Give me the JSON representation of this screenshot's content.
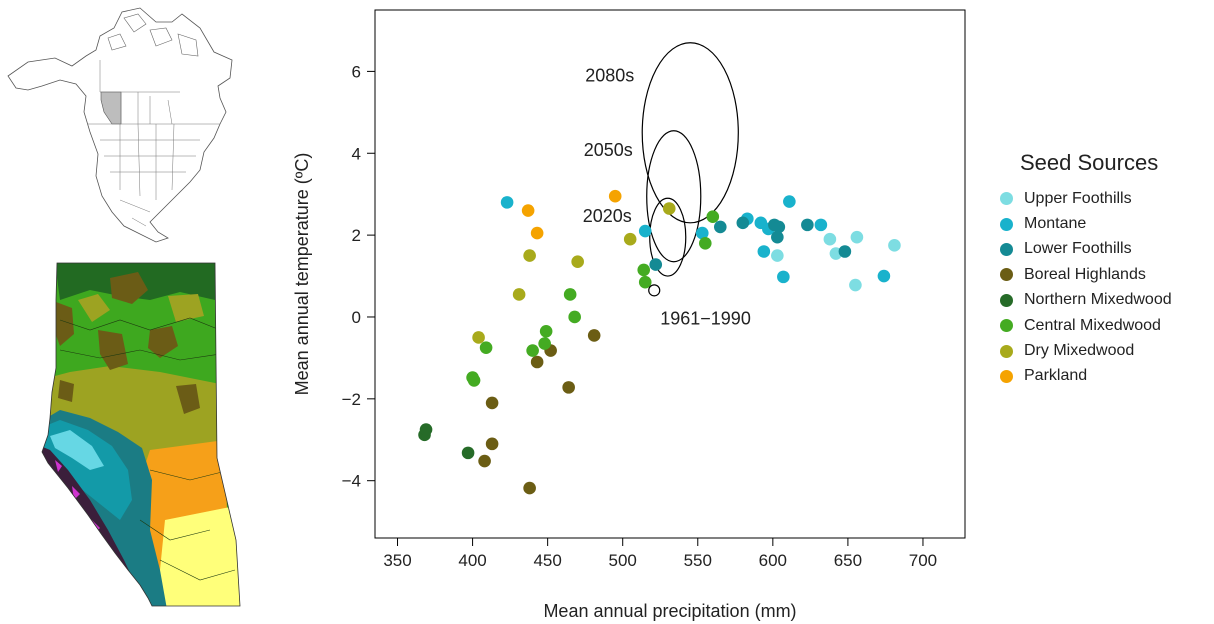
{
  "chart_data": {
    "type": "scatter",
    "xlabel": "Mean annual precipitation (mm)",
    "ylabel": "Mean annual temperature (ºC)",
    "xlim": [
      335,
      728
    ],
    "ylim": [
      -5.4,
      7.5
    ],
    "xticks": [
      350,
      400,
      450,
      500,
      550,
      600,
      650,
      700
    ],
    "yticks": [
      -4,
      -2,
      0,
      2,
      4,
      6
    ],
    "legend_title": "Seed Sources",
    "series": [
      {
        "name": "Upper Foothills",
        "color": "#7ddde2",
        "points": [
          [
            638,
            1.9
          ],
          [
            642,
            1.55
          ],
          [
            656,
            1.95
          ],
          [
            681,
            1.75
          ],
          [
            603,
            1.5
          ],
          [
            655,
            0.78
          ]
        ]
      },
      {
        "name": "Montane",
        "color": "#19b2cc",
        "points": [
          [
            423,
            2.8
          ],
          [
            515,
            2.1
          ],
          [
            553,
            2.05
          ],
          [
            583,
            2.4
          ],
          [
            592,
            2.3
          ],
          [
            597,
            2.15
          ],
          [
            611,
            2.82
          ],
          [
            632,
            2.25
          ],
          [
            594,
            1.6
          ],
          [
            607,
            0.98
          ],
          [
            674,
            1.0
          ]
        ]
      },
      {
        "name": "Lower Foothills",
        "color": "#148a94",
        "points": [
          [
            522,
            1.28
          ],
          [
            565,
            2.2
          ],
          [
            580,
            2.3
          ],
          [
            601,
            2.25
          ],
          [
            604,
            2.2
          ],
          [
            623,
            2.25
          ],
          [
            648,
            1.6
          ],
          [
            603,
            1.95
          ]
        ]
      },
      {
        "name": "Boreal Highlands",
        "color": "#6b5d14",
        "points": [
          [
            443,
            -1.1
          ],
          [
            452,
            -0.82
          ],
          [
            464,
            -1.72
          ],
          [
            481,
            -0.45
          ],
          [
            413,
            -2.1
          ],
          [
            413,
            -3.1
          ],
          [
            408,
            -3.52
          ],
          [
            438,
            -4.18
          ]
        ]
      },
      {
        "name": "Northern Mixedwood",
        "color": "#266b28",
        "points": [
          [
            368,
            -2.88
          ],
          [
            369,
            -2.75
          ],
          [
            397,
            -3.32
          ]
        ]
      },
      {
        "name": "Central Mixedwood",
        "color": "#44ab22",
        "points": [
          [
            400,
            -1.48
          ],
          [
            401,
            -1.55
          ],
          [
            409,
            -0.75
          ],
          [
            440,
            -0.82
          ],
          [
            449,
            -0.35
          ],
          [
            448,
            -0.65
          ],
          [
            465,
            0.55
          ],
          [
            468,
            0.0
          ],
          [
            514,
            1.15
          ],
          [
            515,
            0.85
          ],
          [
            555,
            1.8
          ],
          [
            560,
            2.45
          ]
        ]
      },
      {
        "name": "Dry Mixedwood",
        "color": "#a8aa1b",
        "points": [
          [
            404,
            -0.5
          ],
          [
            431,
            0.55
          ],
          [
            438,
            1.5
          ],
          [
            470,
            1.35
          ],
          [
            505,
            1.9
          ],
          [
            531,
            2.65
          ]
        ]
      },
      {
        "name": "Parkland",
        "color": "#f5a300",
        "points": [
          [
            437,
            2.6
          ],
          [
            443,
            2.05
          ],
          [
            495,
            2.95
          ]
        ]
      }
    ],
    "baseline": {
      "label": "1961−1990",
      "x": 521,
      "y": 0.65
    },
    "ellipses": [
      {
        "label": "2020s",
        "cx": 530,
        "cy": 1.95,
        "rx": 12,
        "ry": 0.95
      },
      {
        "label": "2050s",
        "cx": 534,
        "cy": 2.95,
        "rx": 18,
        "ry": 1.6
      },
      {
        "label": "2080s",
        "cx": 545,
        "cy": 4.5,
        "rx": 32,
        "ry": 2.2
      }
    ]
  },
  "map_colors": {
    "green": "#3ea81f",
    "dark_green": "#226a22",
    "brown": "#6b5c16",
    "olive": "#9da322",
    "cyan": "#66d7e4",
    "teal": "#139aa8",
    "dark_teal": "#1b7c84",
    "orange": "#f6a019",
    "yellow": "#ffff7a",
    "magenta": "#cf34cf",
    "highlight": "#bdbdbd"
  }
}
